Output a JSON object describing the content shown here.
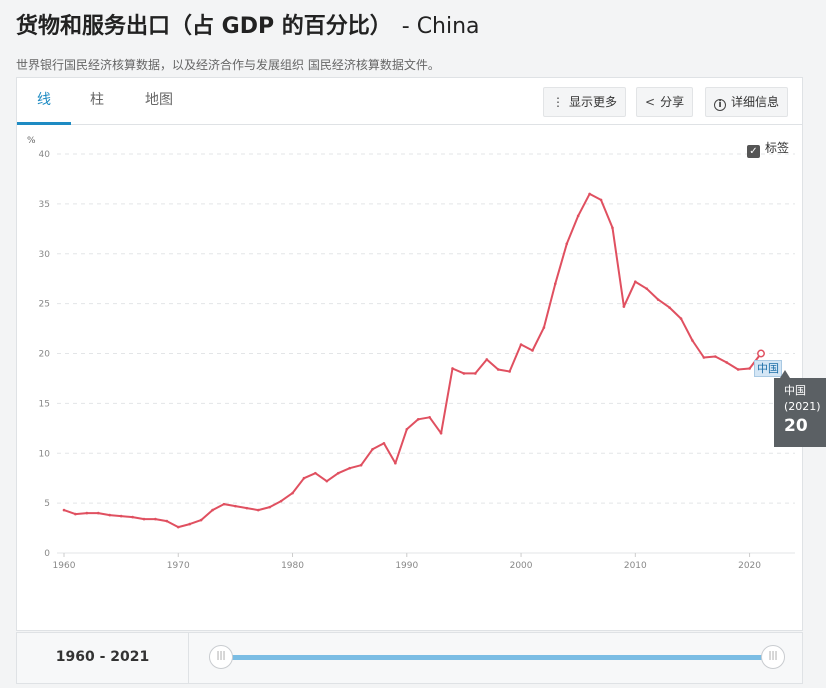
{
  "header": {
    "title": "货物和服务出口（占 GDP 的百分比）",
    "title_suffix": "- China",
    "subtitle": "世界银行国民经济核算数据，以及经济合作与发展组织 国民经济核算数据文件。"
  },
  "tabs": [
    {
      "label": "线",
      "active": true
    },
    {
      "label": "柱",
      "active": false
    },
    {
      "label": "地图",
      "active": false
    }
  ],
  "toolbar": {
    "more_label": "显示更多",
    "share_label": "分享",
    "details_label": "详细信息"
  },
  "legend_toggle": {
    "label": "标签",
    "checked": true
  },
  "tooltip": {
    "name": "中国",
    "year": "(2021)",
    "value": "20"
  },
  "series_tag": "中国",
  "range": {
    "label": "1960 - 2021"
  },
  "colors": {
    "line": "#e05060",
    "accent": "#1e8bc3",
    "slider": "#7bbde4"
  },
  "chart_data": {
    "type": "line",
    "ylabel": "%",
    "xlim": [
      1960,
      2021
    ],
    "ylim": [
      0,
      40
    ],
    "yticks": [
      0,
      5,
      10,
      15,
      20,
      25,
      30,
      35,
      40
    ],
    "xticks": [
      1960,
      1970,
      1980,
      1990,
      2000,
      2010,
      2020
    ],
    "grid": true,
    "series": [
      {
        "name": "中国",
        "x": [
          1960,
          1961,
          1962,
          1963,
          1964,
          1965,
          1966,
          1967,
          1968,
          1969,
          1970,
          1971,
          1972,
          1973,
          1974,
          1975,
          1976,
          1977,
          1978,
          1979,
          1980,
          1981,
          1982,
          1983,
          1984,
          1985,
          1986,
          1987,
          1988,
          1989,
          1990,
          1991,
          1992,
          1993,
          1994,
          1995,
          1996,
          1997,
          1998,
          1999,
          2000,
          2001,
          2002,
          2003,
          2004,
          2005,
          2006,
          2007,
          2008,
          2009,
          2010,
          2011,
          2012,
          2013,
          2014,
          2015,
          2016,
          2017,
          2018,
          2019,
          2020,
          2021
        ],
        "y": [
          4.3,
          3.9,
          4.0,
          4.0,
          3.8,
          3.7,
          3.6,
          3.4,
          3.4,
          3.2,
          2.6,
          2.9,
          3.3,
          4.3,
          4.9,
          4.7,
          4.5,
          4.3,
          4.6,
          5.2,
          6.0,
          7.5,
          8.0,
          7.2,
          8.0,
          8.5,
          8.8,
          10.4,
          11.0,
          9.0,
          12.4,
          13.4,
          13.6,
          12.0,
          18.5,
          18.0,
          18.0,
          19.4,
          18.4,
          18.2,
          20.9,
          20.3,
          22.6,
          27.0,
          31.0,
          33.8,
          36.0,
          35.4,
          32.6,
          24.7,
          27.2,
          26.5,
          25.4,
          24.6,
          23.5,
          21.3,
          19.6,
          19.7,
          19.1,
          18.4,
          18.5,
          20.0
        ]
      }
    ]
  }
}
